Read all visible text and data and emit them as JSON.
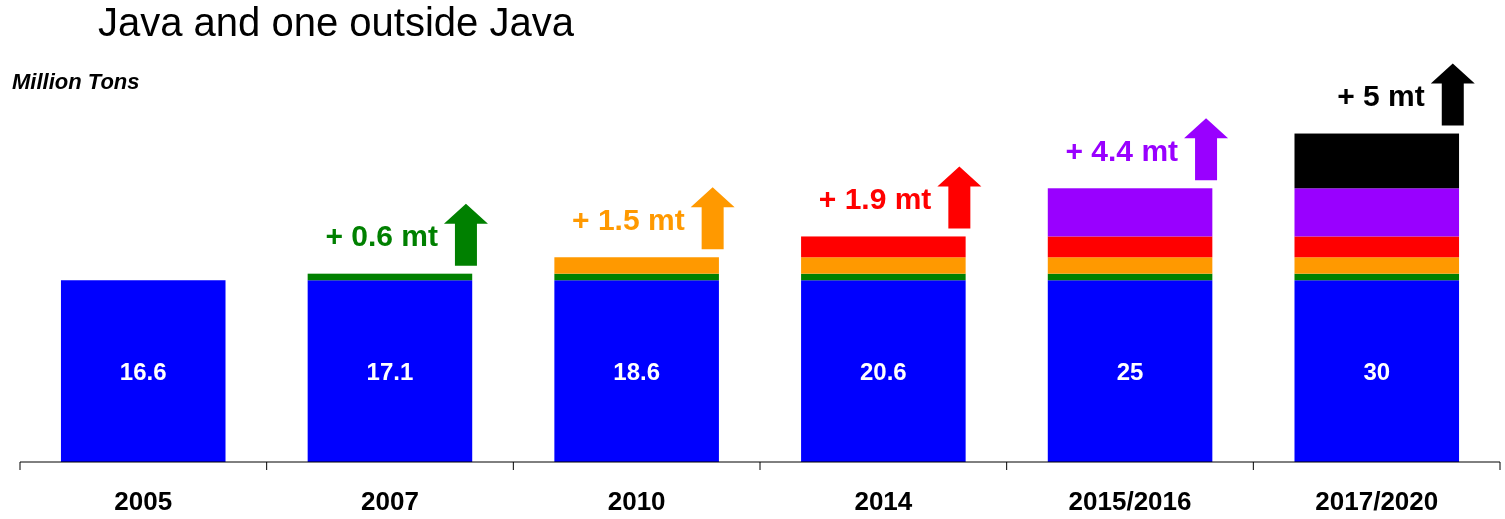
{
  "chart_data": {
    "type": "bar",
    "title": "Java and one outside Java",
    "categories": [
      "2005",
      "2007",
      "2010",
      "2014",
      "2015/2016",
      "2017/2020"
    ],
    "stacked": true,
    "series": [
      {
        "color": "#0000ff",
        "values": [
          16.6,
          16.6,
          16.6,
          16.6,
          16.6,
          16.6
        ]
      },
      {
        "color": "#008000",
        "values": [
          null,
          0.6,
          0.6,
          0.6,
          0.6,
          0.6
        ],
        "value_labels": [
          null,
          "+ 0.6 mt",
          null,
          null,
          null,
          null
        ]
      },
      {
        "color": "#ff9900",
        "values": [
          null,
          null,
          1.5,
          1.5,
          1.5,
          1.5
        ],
        "value_labels": [
          null,
          null,
          "+ 1.5 mt",
          null,
          null,
          null
        ]
      },
      {
        "color": "#ff0000",
        "values": [
          null,
          null,
          null,
          1.9,
          1.9,
          1.9
        ],
        "value_labels": [
          null,
          null,
          null,
          "+ 1.9 mt",
          null,
          null
        ]
      },
      {
        "color": "#9900ff",
        "values": [
          null,
          null,
          null,
          null,
          4.4,
          4.4
        ],
        "value_labels": [
          null,
          null,
          null,
          null,
          "+ 4.4 mt",
          null
        ]
      },
      {
        "color": "#000000",
        "values": [
          null,
          null,
          null,
          null,
          null,
          5
        ],
        "value_labels": [
          null,
          null,
          null,
          null,
          null,
          "+ 5 mt"
        ]
      }
    ],
    "totals": [
      "16.6",
      "17.1",
      "18.6",
      "20.6",
      "25",
      "30"
    ],
    "annotations": [
      "Million Tons"
    ]
  }
}
